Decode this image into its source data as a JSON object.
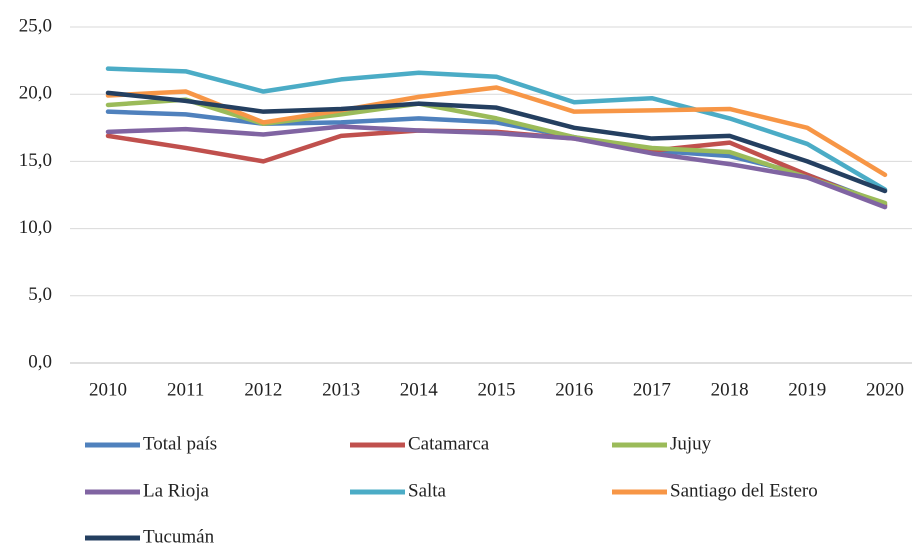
{
  "chart_data": {
    "type": "line",
    "categories": [
      "2010",
      "2011",
      "2012",
      "2013",
      "2014",
      "2015",
      "2016",
      "2017",
      "2018",
      "2019",
      "2020"
    ],
    "series": [
      {
        "name": "Total país",
        "color": "#4f81bd",
        "values": [
          18.7,
          18.5,
          17.8,
          17.9,
          18.2,
          17.9,
          16.8,
          15.8,
          15.4,
          14.0,
          11.8
        ]
      },
      {
        "name": "Catamarca",
        "color": "#c0504d",
        "values": [
          16.9,
          16.0,
          15.0,
          16.9,
          17.3,
          17.2,
          16.7,
          15.8,
          16.4,
          14.0,
          11.7
        ]
      },
      {
        "name": "Jujuy",
        "color": "#9bbb59",
        "values": [
          19.2,
          19.6,
          17.8,
          18.5,
          19.3,
          18.2,
          16.8,
          16.0,
          15.7,
          13.8,
          11.9
        ]
      },
      {
        "name": "La Rioja",
        "color": "#8064a2",
        "values": [
          17.2,
          17.4,
          17.0,
          17.6,
          17.3,
          17.1,
          16.7,
          15.6,
          14.8,
          13.8,
          11.6
        ]
      },
      {
        "name": "Salta",
        "color": "#4bacc6",
        "values": [
          21.9,
          21.7,
          20.2,
          21.1,
          21.6,
          21.3,
          19.4,
          19.7,
          18.2,
          16.3,
          12.9
        ]
      },
      {
        "name": "Santiago del Estero",
        "color": "#f79646",
        "values": [
          19.9,
          20.2,
          17.9,
          18.8,
          19.8,
          20.5,
          18.7,
          18.8,
          18.9,
          17.5,
          14.0
        ]
      },
      {
        "name": "Tucumán",
        "color": "#243f60",
        "values": [
          20.1,
          19.5,
          18.7,
          18.9,
          19.3,
          19.0,
          17.5,
          16.7,
          16.9,
          15.0,
          12.8
        ]
      }
    ],
    "ylim": [
      0,
      25
    ],
    "yticks": [
      {
        "value": 0,
        "label": "0,0"
      },
      {
        "value": 5,
        "label": "5,0"
      },
      {
        "value": 10,
        "label": "10,0"
      },
      {
        "value": 15,
        "label": "15,0"
      },
      {
        "value": 20,
        "label": "20,0"
      },
      {
        "value": 25,
        "label": "25,0"
      }
    ],
    "grid": true
  }
}
